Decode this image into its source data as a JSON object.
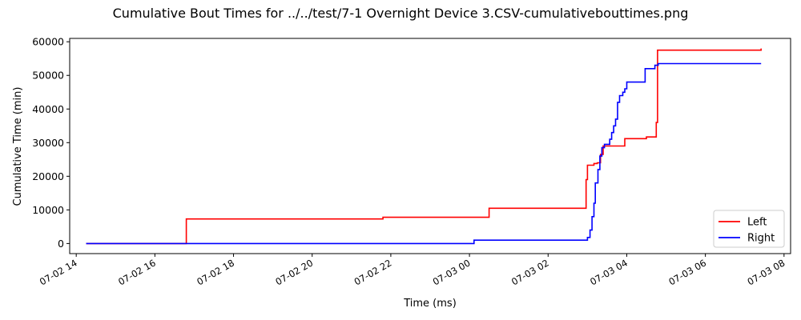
{
  "chart_data": {
    "type": "line",
    "title": "Cumulative Bout Times for ../../test/7-1 Overnight Device 3.CSV-cumulativebouttimes.png",
    "xlabel": "Time (ms)",
    "ylabel": "Cumulative Time (min)",
    "xlim": [
      "07-02 13:50",
      "07-03 08:10"
    ],
    "ylim": [
      -3000,
      61000
    ],
    "x_ticks": [
      "07-02 14",
      "07-02 16",
      "07-02 18",
      "07-02 20",
      "07-02 22",
      "07-03 00",
      "07-03 02",
      "07-03 04",
      "07-03 06",
      "07-03 08"
    ],
    "y_ticks": [
      0,
      10000,
      20000,
      30000,
      40000,
      50000,
      60000
    ],
    "grid": false,
    "legend_position": "bottom-right",
    "series": [
      {
        "name": "Left",
        "color": "#ff0000",
        "step": true,
        "points": [
          [
            "07-02 14:15",
            0
          ],
          [
            "07-02 16:48",
            0
          ],
          [
            "07-02 16:48",
            7300
          ],
          [
            "07-02 21:48",
            7300
          ],
          [
            "07-02 21:48",
            7800
          ],
          [
            "07-03 00:30",
            7800
          ],
          [
            "07-03 00:30",
            10500
          ],
          [
            "07-03 02:58",
            10500
          ],
          [
            "07-03 02:58",
            19000
          ],
          [
            "07-03 03:00",
            19000
          ],
          [
            "07-03 03:00",
            23300
          ],
          [
            "07-03 03:10",
            23300
          ],
          [
            "07-03 03:10",
            23800
          ],
          [
            "07-03 03:15",
            23800
          ],
          [
            "07-03 03:15",
            24000
          ],
          [
            "07-03 03:20",
            24000
          ],
          [
            "07-03 03:20",
            26500
          ],
          [
            "07-03 03:24",
            26500
          ],
          [
            "07-03 03:24",
            29000
          ],
          [
            "07-03 03:57",
            29000
          ],
          [
            "07-03 03:57",
            31200
          ],
          [
            "07-03 04:30",
            31200
          ],
          [
            "07-03 04:30",
            31700
          ],
          [
            "07-03 04:45",
            31700
          ],
          [
            "07-03 04:45",
            36000
          ],
          [
            "07-03 04:47",
            36000
          ],
          [
            "07-03 04:47",
            57500
          ],
          [
            "07-03 07:25",
            57500
          ],
          [
            "07-03 07:25",
            58000
          ]
        ]
      },
      {
        "name": "Right",
        "color": "#0000ff",
        "step": true,
        "points": [
          [
            "07-02 14:15",
            0
          ],
          [
            "07-03 00:07",
            0
          ],
          [
            "07-03 00:07",
            1000
          ],
          [
            "07-03 03:00",
            1000
          ],
          [
            "07-03 03:00",
            1800
          ],
          [
            "07-03 03:04",
            1800
          ],
          [
            "07-03 03:04",
            4000
          ],
          [
            "07-03 03:07",
            4000
          ],
          [
            "07-03 03:07",
            8000
          ],
          [
            "07-03 03:10",
            8000
          ],
          [
            "07-03 03:10",
            12000
          ],
          [
            "07-03 03:12",
            12000
          ],
          [
            "07-03 03:12",
            18000
          ],
          [
            "07-03 03:16",
            18000
          ],
          [
            "07-03 03:16",
            22000
          ],
          [
            "07-03 03:19",
            22000
          ],
          [
            "07-03 03:19",
            26000
          ],
          [
            "07-03 03:22",
            26000
          ],
          [
            "07-03 03:22",
            28500
          ],
          [
            "07-03 03:26",
            28500
          ],
          [
            "07-03 03:26",
            29500
          ],
          [
            "07-03 03:34",
            29500
          ],
          [
            "07-03 03:34",
            31000
          ],
          [
            "07-03 03:37",
            31000
          ],
          [
            "07-03 03:37",
            33000
          ],
          [
            "07-03 03:40",
            33000
          ],
          [
            "07-03 03:40",
            35000
          ],
          [
            "07-03 03:43",
            35000
          ],
          [
            "07-03 03:43",
            37000
          ],
          [
            "07-03 03:46",
            37000
          ],
          [
            "07-03 03:46",
            42000
          ],
          [
            "07-03 03:49",
            42000
          ],
          [
            "07-03 03:49",
            44000
          ],
          [
            "07-03 03:54",
            44000
          ],
          [
            "07-03 03:54",
            45000
          ],
          [
            "07-03 03:57",
            45000
          ],
          [
            "07-03 03:57",
            46000
          ],
          [
            "07-03 04:00",
            46000
          ],
          [
            "07-03 04:00",
            48000
          ],
          [
            "07-03 04:28",
            48000
          ],
          [
            "07-03 04:28",
            52000
          ],
          [
            "07-03 04:43",
            52000
          ],
          [
            "07-03 04:43",
            53000
          ],
          [
            "07-03 04:48",
            53000
          ],
          [
            "07-03 04:48",
            53500
          ],
          [
            "07-03 07:25",
            53500
          ]
        ]
      }
    ]
  }
}
